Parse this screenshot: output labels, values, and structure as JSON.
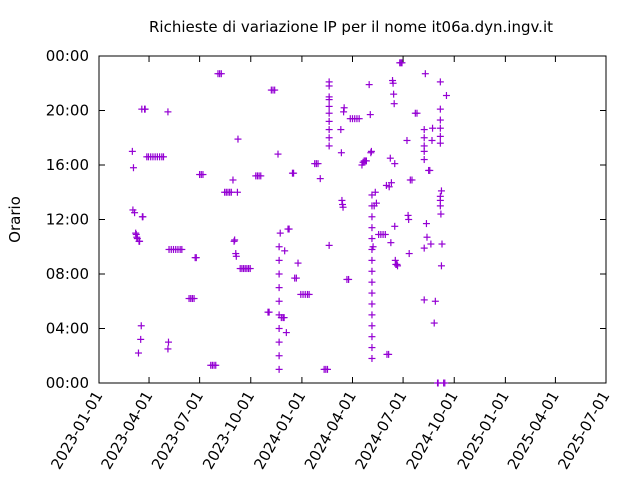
{
  "chart_data": {
    "type": "scatter",
    "title": "Richieste di variazione IP per il nome it06a.dyn.ingv.it",
    "ylabel": "Orario",
    "xlabel": "",
    "grid": false,
    "legend": "none",
    "marker": "+",
    "color": "#9400d3",
    "xlim": [
      "2023-01-01",
      "2025-07-01"
    ],
    "ylim": [
      0,
      24
    ],
    "x_ticks": [
      "2023-01-01",
      "2023-04-01",
      "2023-07-01",
      "2023-10-01",
      "2024-01-01",
      "2024-04-01",
      "2024-07-01",
      "2024-10-01",
      "2025-01-01",
      "2025-04-01",
      "2025-07-01"
    ],
    "y_ticks": [
      {
        "value": 0,
        "label": "00:00"
      },
      {
        "value": 4,
        "label": "04:00"
      },
      {
        "value": 8,
        "label": "08:00"
      },
      {
        "value": 12,
        "label": "12:00"
      },
      {
        "value": 16,
        "label": "16:00"
      },
      {
        "value": 20,
        "label": "20:00"
      },
      {
        "value": 24,
        "label": "00:00"
      }
    ],
    "points": [
      [
        "2023-03-02",
        17.0
      ],
      [
        "2023-03-04",
        15.8
      ],
      [
        "2023-03-03",
        12.7
      ],
      [
        "2023-03-06",
        12.5
      ],
      [
        "2023-03-08",
        11.0
      ],
      [
        "2023-03-09",
        10.9
      ],
      [
        "2023-03-10",
        10.7
      ],
      [
        "2023-03-11",
        10.6
      ],
      [
        "2023-03-14",
        10.4
      ],
      [
        "2023-03-15",
        10.4
      ],
      [
        "2023-03-13",
        2.2
      ],
      [
        "2023-03-17",
        3.2
      ],
      [
        "2023-03-18",
        4.2
      ],
      [
        "2023-03-19",
        20.1
      ],
      [
        "2023-03-20",
        12.2
      ],
      [
        "2023-03-21",
        12.2
      ],
      [
        "2023-03-24",
        20.1
      ],
      [
        "2023-03-25",
        20.1
      ],
      [
        "2023-03-28",
        16.6
      ],
      [
        "2023-03-31",
        16.6
      ],
      [
        "2023-04-04",
        16.6
      ],
      [
        "2023-04-08",
        16.6
      ],
      [
        "2023-04-12",
        16.6
      ],
      [
        "2023-04-16",
        16.6
      ],
      [
        "2023-04-20",
        16.6
      ],
      [
        "2023-04-24",
        16.6
      ],
      [
        "2023-04-27",
        16.6
      ],
      [
        "2023-05-05",
        19.9
      ],
      [
        "2023-05-05",
        2.5
      ],
      [
        "2023-05-06",
        3.0
      ],
      [
        "2023-05-07",
        9.8
      ],
      [
        "2023-05-11",
        9.8
      ],
      [
        "2023-05-15",
        9.8
      ],
      [
        "2023-05-19",
        9.8
      ],
      [
        "2023-05-23",
        9.8
      ],
      [
        "2023-05-27",
        9.8
      ],
      [
        "2023-05-30",
        9.8
      ],
      [
        "2023-06-12",
        6.2
      ],
      [
        "2023-06-15",
        6.2
      ],
      [
        "2023-06-18",
        6.2
      ],
      [
        "2023-06-21",
        6.2
      ],
      [
        "2023-06-23",
        9.2
      ],
      [
        "2023-06-25",
        9.2
      ],
      [
        "2023-07-01",
        15.3
      ],
      [
        "2023-07-04",
        15.3
      ],
      [
        "2023-07-07",
        15.3
      ],
      [
        "2023-07-21",
        1.3
      ],
      [
        "2023-07-24",
        1.3
      ],
      [
        "2023-07-27",
        1.3
      ],
      [
        "2023-07-30",
        1.3
      ],
      [
        "2023-08-03",
        22.7
      ],
      [
        "2023-08-06",
        22.7
      ],
      [
        "2023-08-09",
        22.7
      ],
      [
        "2023-08-15",
        14.0
      ],
      [
        "2023-08-18",
        14.0
      ],
      [
        "2023-08-21",
        14.0
      ],
      [
        "2023-08-24",
        14.0
      ],
      [
        "2023-08-27",
        14.0
      ],
      [
        "2023-08-30",
        14.9
      ],
      [
        "2023-09-01",
        10.4
      ],
      [
        "2023-09-02",
        10.5
      ],
      [
        "2023-09-04",
        9.5
      ],
      [
        "2023-09-05",
        9.3
      ],
      [
        "2023-09-07",
        14.0
      ],
      [
        "2023-09-08",
        17.9
      ],
      [
        "2023-09-12",
        8.4
      ],
      [
        "2023-09-15",
        8.4
      ],
      [
        "2023-09-18",
        8.4
      ],
      [
        "2023-09-21",
        8.4
      ],
      [
        "2023-09-24",
        8.4
      ],
      [
        "2023-09-27",
        8.4
      ],
      [
        "2023-09-30",
        8.4
      ],
      [
        "2023-10-10",
        15.2
      ],
      [
        "2023-10-13",
        15.2
      ],
      [
        "2023-10-16",
        15.2
      ],
      [
        "2023-10-19",
        15.2
      ],
      [
        "2023-11-01",
        5.2
      ],
      [
        "2023-11-03",
        5.2
      ],
      [
        "2023-11-07",
        21.5
      ],
      [
        "2023-11-10",
        21.5
      ],
      [
        "2023-11-13",
        21.5
      ],
      [
        "2023-11-19",
        16.8
      ],
      [
        "2023-11-21",
        1.0
      ],
      [
        "2023-11-21",
        2.0
      ],
      [
        "2023-11-21",
        3.0
      ],
      [
        "2023-11-21",
        4.0
      ],
      [
        "2023-11-21",
        5.0
      ],
      [
        "2023-11-21",
        6.0
      ],
      [
        "2023-11-21",
        7.0
      ],
      [
        "2023-11-21",
        8.0
      ],
      [
        "2023-11-21",
        9.0
      ],
      [
        "2023-11-21",
        10.0
      ],
      [
        "2023-11-23",
        11.0
      ],
      [
        "2023-11-25",
        4.8
      ],
      [
        "2023-11-28",
        4.8
      ],
      [
        "2023-11-30",
        4.8
      ],
      [
        "2023-12-01",
        9.7
      ],
      [
        "2023-12-04",
        3.7
      ],
      [
        "2023-12-07",
        11.3
      ],
      [
        "2023-12-09",
        11.3
      ],
      [
        "2023-12-15",
        15.4
      ],
      [
        "2023-12-17",
        15.4
      ],
      [
        "2023-12-19",
        7.7
      ],
      [
        "2023-12-22",
        7.7
      ],
      [
        "2023-12-25",
        8.8
      ],
      [
        "2023-12-30",
        6.5
      ],
      [
        "2024-01-03",
        6.5
      ],
      [
        "2024-01-07",
        6.5
      ],
      [
        "2024-01-11",
        6.5
      ],
      [
        "2024-01-14",
        6.5
      ],
      [
        "2024-01-24",
        16.1
      ],
      [
        "2024-01-27",
        16.1
      ],
      [
        "2024-01-30",
        16.1
      ],
      [
        "2024-02-03",
        15.0
      ],
      [
        "2024-02-10",
        1.0
      ],
      [
        "2024-02-13",
        1.0
      ],
      [
        "2024-02-16",
        1.0
      ],
      [
        "2024-02-19",
        22.1
      ],
      [
        "2024-02-19",
        21.8
      ],
      [
        "2024-02-19",
        21.0
      ],
      [
        "2024-02-19",
        20.8
      ],
      [
        "2024-02-19",
        20.3
      ],
      [
        "2024-02-19",
        19.8
      ],
      [
        "2024-02-19",
        19.2
      ],
      [
        "2024-02-19",
        18.6
      ],
      [
        "2024-02-19",
        18.0
      ],
      [
        "2024-02-19",
        17.4
      ],
      [
        "2024-02-19",
        10.1
      ],
      [
        "2024-03-11",
        18.6
      ],
      [
        "2024-03-12",
        16.9
      ],
      [
        "2024-03-13",
        13.4
      ],
      [
        "2024-03-14",
        13.1
      ],
      [
        "2024-03-15",
        12.9
      ],
      [
        "2024-03-16",
        19.9
      ],
      [
        "2024-03-17",
        20.2
      ],
      [
        "2024-03-22",
        7.6
      ],
      [
        "2024-03-25",
        7.6
      ],
      [
        "2024-03-28",
        19.4
      ],
      [
        "2024-04-01",
        19.4
      ],
      [
        "2024-04-05",
        19.4
      ],
      [
        "2024-04-09",
        19.4
      ],
      [
        "2024-04-13",
        19.4
      ],
      [
        "2024-04-18",
        16.0
      ],
      [
        "2024-04-20",
        16.2
      ],
      [
        "2024-04-22",
        16.3
      ],
      [
        "2024-04-24",
        16.3
      ],
      [
        "2024-04-26",
        16.3
      ],
      [
        "2024-05-01",
        21.9
      ],
      [
        "2024-05-03",
        19.7
      ],
      [
        "2024-05-04",
        16.9
      ],
      [
        "2024-05-05",
        17.0
      ],
      [
        "2024-05-06",
        1.8
      ],
      [
        "2024-05-06",
        2.6
      ],
      [
        "2024-05-06",
        3.4
      ],
      [
        "2024-05-06",
        4.2
      ],
      [
        "2024-05-06",
        5.0
      ],
      [
        "2024-05-06",
        5.8
      ],
      [
        "2024-05-06",
        6.6
      ],
      [
        "2024-05-06",
        7.4
      ],
      [
        "2024-05-06",
        8.2
      ],
      [
        "2024-05-06",
        9.0
      ],
      [
        "2024-05-06",
        9.8
      ],
      [
        "2024-05-06",
        10.6
      ],
      [
        "2024-05-06",
        11.4
      ],
      [
        "2024-05-06",
        12.2
      ],
      [
        "2024-05-06",
        13.0
      ],
      [
        "2024-05-06",
        13.8
      ],
      [
        "2024-05-08",
        10.0
      ],
      [
        "2024-05-10",
        13.0
      ],
      [
        "2024-05-12",
        14.0
      ],
      [
        "2024-05-14",
        13.2
      ],
      [
        "2024-05-18",
        10.9
      ],
      [
        "2024-05-22",
        10.9
      ],
      [
        "2024-05-26",
        10.9
      ],
      [
        "2024-05-30",
        10.9
      ],
      [
        "2024-06-01",
        14.5
      ],
      [
        "2024-06-02",
        2.1
      ],
      [
        "2024-06-05",
        2.1
      ],
      [
        "2024-06-06",
        14.4
      ],
      [
        "2024-06-08",
        16.5
      ],
      [
        "2024-06-09",
        10.3
      ],
      [
        "2024-06-10",
        14.7
      ],
      [
        "2024-06-12",
        22.2
      ],
      [
        "2024-06-13",
        22.0
      ],
      [
        "2024-06-14",
        21.2
      ],
      [
        "2024-06-15",
        20.5
      ],
      [
        "2024-06-16",
        16.1
      ],
      [
        "2024-06-16",
        11.5
      ],
      [
        "2024-06-17",
        9.0
      ],
      [
        "2024-06-18",
        8.7
      ],
      [
        "2024-06-20",
        8.7
      ],
      [
        "2024-06-21",
        8.6
      ],
      [
        "2024-06-25",
        23.5
      ],
      [
        "2024-06-27",
        23.5
      ],
      [
        "2024-06-29",
        23.5
      ],
      [
        "2024-07-08",
        17.8
      ],
      [
        "2024-07-10",
        12.3
      ],
      [
        "2024-07-11",
        12.0
      ],
      [
        "2024-07-12",
        9.5
      ],
      [
        "2024-07-14",
        14.9
      ],
      [
        "2024-07-17",
        14.9
      ],
      [
        "2024-07-23",
        19.8
      ],
      [
        "2024-07-26",
        19.8
      ],
      [
        "2024-08-08",
        18.6
      ],
      [
        "2024-08-08",
        18.0
      ],
      [
        "2024-08-08",
        17.4
      ],
      [
        "2024-08-08",
        17.0
      ],
      [
        "2024-08-08",
        16.4
      ],
      [
        "2024-08-08",
        9.9
      ],
      [
        "2024-08-08",
        6.1
      ],
      [
        "2024-08-10",
        22.7
      ],
      [
        "2024-08-12",
        11.7
      ],
      [
        "2024-08-13",
        10.7
      ],
      [
        "2024-08-16",
        15.6
      ],
      [
        "2024-08-18",
        15.6
      ],
      [
        "2024-08-20",
        10.2
      ],
      [
        "2024-08-22",
        17.8
      ],
      [
        "2024-08-23",
        18.7
      ],
      [
        "2024-08-26",
        4.4
      ],
      [
        "2024-08-28",
        6.0
      ],
      [
        "2024-09-01",
        0.0
      ],
      [
        "2024-09-02",
        0.0
      ],
      [
        "2024-09-06",
        20.1
      ],
      [
        "2024-09-06",
        19.3
      ],
      [
        "2024-09-06",
        18.7
      ],
      [
        "2024-09-06",
        18.1
      ],
      [
        "2024-09-06",
        17.6
      ],
      [
        "2024-09-06",
        22.1
      ],
      [
        "2024-09-06",
        13.7
      ],
      [
        "2024-09-06",
        13.4
      ],
      [
        "2024-09-06",
        13.0
      ],
      [
        "2024-09-07",
        12.4
      ],
      [
        "2024-09-08",
        14.1
      ],
      [
        "2024-09-09",
        10.2
      ],
      [
        "2024-09-08",
        8.6
      ],
      [
        "2024-09-12",
        0.0
      ],
      [
        "2024-09-14",
        0.0
      ],
      [
        "2024-09-17",
        21.1
      ]
    ]
  }
}
